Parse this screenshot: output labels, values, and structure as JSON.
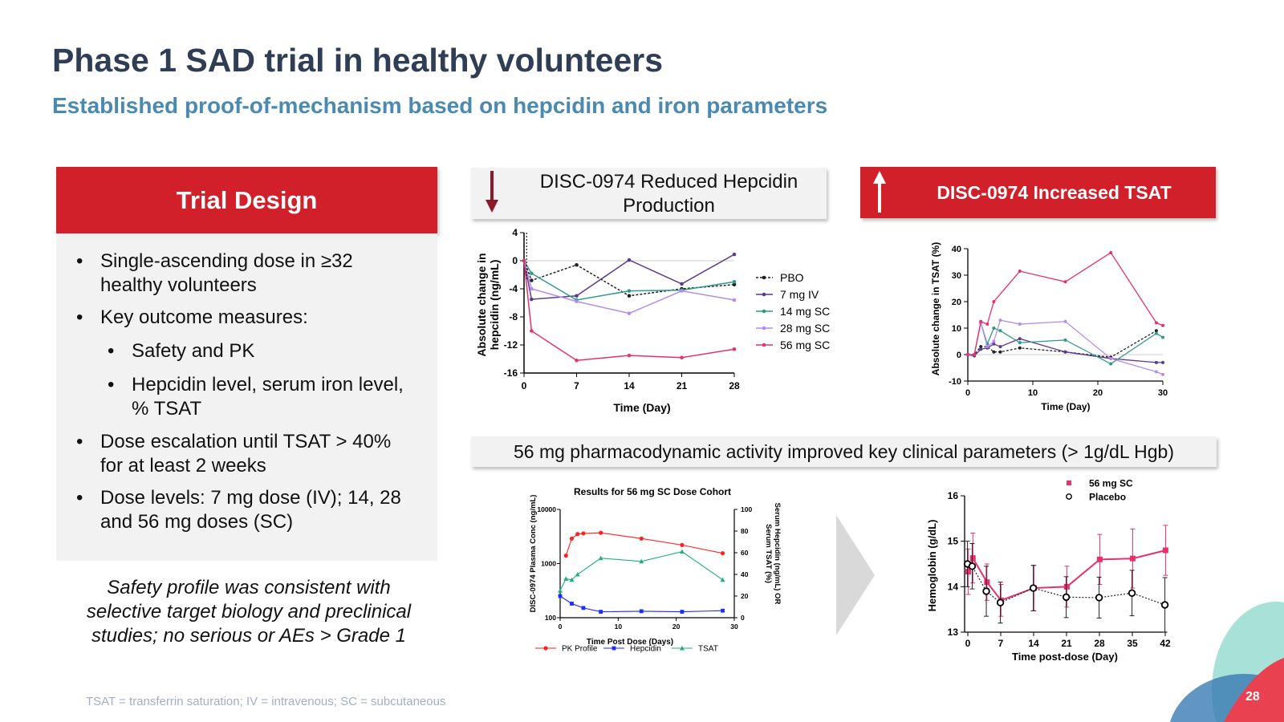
{
  "header": {
    "title": "Phase 1 SAD trial in healthy volunteers",
    "subtitle": "Established proof-of-mechanism based on hepcidin and iron parameters"
  },
  "trial_design": {
    "heading": "Trial Design",
    "bullets": [
      "Single-ascending dose in ≥32 healthy volunteers",
      "Key outcome measures:",
      "Safety and PK",
      "Hepcidin level, serum iron level, % TSAT",
      "Dose escalation until TSAT > 40% for at least 2 weeks",
      "Dose levels: 7 mg dose (IV); 14, 28 and 56 mg doses (SC)"
    ],
    "bullet_symbol": "•",
    "safety_note": "Safety profile was consistent with selective target biology and preclinical studies; no serious or AEs > Grade 1"
  },
  "banners": {
    "hepcidin": "DISC-0974 Reduced Hepcidin Production",
    "tsat": "DISC-0974 Increased TSAT",
    "pd": "56 mg pharmacodynamic activity improved key clinical parameters (> 1g/dL Hgb)"
  },
  "footnote": "TSAT = transferrin saturation; IV = intravenous; SC = subcutaneous",
  "page_number": "28",
  "colors": {
    "title": "#2f3d55",
    "subtitle": "#4a8ab0",
    "brand_red": "#d1202a",
    "panel_gray": "#f2f2f2",
    "pbo": "#222222",
    "iv7": "#5b3a8c",
    "sc14": "#2e9a8a",
    "sc28": "#b48cf0",
    "sc56": "#e8306f"
  },
  "chart_data": [
    {
      "type": "line",
      "xlabel": "Time (Day)",
      "ylabel": "Absolute change in hepcidin (ng/mL)",
      "xlim": [
        0,
        28
      ],
      "ylim": [
        -16,
        4
      ],
      "xticks": [
        0,
        7,
        14,
        21,
        28
      ],
      "yticks": [
        4,
        0,
        -4,
        -8,
        -12,
        -16
      ],
      "legend_position": "right",
      "series": [
        {
          "name": "PBO",
          "x": [
            0,
            1,
            7,
            14,
            21,
            28
          ],
          "y": [
            0,
            -2.8,
            -0.6,
            -5,
            -4,
            -3.4
          ]
        },
        {
          "name": "7 mg IV",
          "x": [
            0,
            1,
            7,
            14,
            21,
            28
          ],
          "y": [
            0,
            -5.5,
            -5,
            0.1,
            -3.3,
            0.9
          ]
        },
        {
          "name": "14 mg SC",
          "x": [
            0,
            1,
            7,
            14,
            21,
            28
          ],
          "y": [
            0,
            -1.8,
            -5.6,
            -4.3,
            -4.2,
            -3
          ]
        },
        {
          "name": "28 mg SC",
          "x": [
            0,
            1,
            7,
            14,
            21,
            28
          ],
          "y": [
            0,
            -4,
            -5.8,
            -7.5,
            -4.3,
            -5.6
          ]
        },
        {
          "name": "56 mg SC",
          "x": [
            0,
            1,
            7,
            14,
            21,
            28
          ],
          "y": [
            0,
            -10,
            -14.2,
            -13.5,
            -13.8,
            -12.6
          ]
        }
      ]
    },
    {
      "type": "line",
      "xlabel": "Time (Day)",
      "ylabel": "Absolute change in TSAT (%)",
      "xlim": [
        0,
        30
      ],
      "ylim": [
        -10,
        40
      ],
      "xticks": [
        0,
        10,
        20,
        30
      ],
      "yticks": [
        40,
        30,
        20,
        10,
        0,
        -10
      ],
      "series": [
        {
          "name": "PBO",
          "x": [
            0,
            1,
            2,
            3,
            4,
            5,
            8,
            15,
            22,
            29
          ],
          "y": [
            0,
            0,
            3,
            3,
            1,
            1,
            2.5,
            1,
            -1,
            9
          ]
        },
        {
          "name": "7 mg IV",
          "x": [
            0,
            1,
            2,
            3,
            4,
            5,
            8,
            15,
            22,
            29,
            30
          ],
          "y": [
            0,
            -0.5,
            2,
            2.5,
            4,
            3,
            6,
            1,
            -1.5,
            -3,
            -3
          ]
        },
        {
          "name": "14 mg SC",
          "x": [
            0,
            1,
            2,
            3,
            4,
            5,
            8,
            15,
            22,
            29,
            30
          ],
          "y": [
            0,
            0,
            12,
            4,
            10,
            9,
            4.5,
            5.5,
            -3.5,
            8,
            6.5
          ]
        },
        {
          "name": "28 mg SC",
          "x": [
            0,
            1,
            2,
            3,
            4,
            5,
            8,
            15,
            22,
            29,
            30
          ],
          "y": [
            0,
            0,
            12,
            3,
            5,
            13,
            11.5,
            12.5,
            -1.5,
            -6.5,
            -7.5
          ]
        },
        {
          "name": "56 mg SC",
          "x": [
            0,
            1,
            2,
            3,
            4,
            8,
            15,
            22,
            29,
            30
          ],
          "y": [
            0,
            0,
            12.5,
            11.5,
            20,
            31.5,
            27.5,
            38.5,
            12,
            11
          ]
        }
      ]
    },
    {
      "type": "line",
      "title": "Results for 56 mg SC Dose  Cohort",
      "xlabel": "Time Post Dose (Days)",
      "ylabel": "DISC-0974 Plasma Conc (ng/mL)",
      "y2label": "Serum Hepcidin (ng/mL) OR Serum  TSAT (%)",
      "xlim": [
        0,
        30
      ],
      "ylim": [
        100,
        10000
      ],
      "yscale": "log",
      "y2lim": [
        0,
        100
      ],
      "xticks": [
        0,
        10,
        20,
        30
      ],
      "yticks": [
        10000,
        1000,
        100
      ],
      "yticklabels": [
        "10000",
        "1000",
        "100"
      ],
      "y2ticks": [
        100,
        80,
        60,
        40,
        20,
        0
      ],
      "legend_position": "bottom",
      "series": [
        {
          "name": "PK Profile",
          "axis": "left",
          "x": [
            1,
            2,
            3,
            4,
            7,
            14,
            21,
            28
          ],
          "y": [
            1400,
            2900,
            3500,
            3600,
            3700,
            2900,
            2200,
            1550
          ]
        },
        {
          "name": "Hepcidin",
          "axis": "right",
          "x": [
            0,
            2,
            4,
            7,
            14,
            21,
            28
          ],
          "y": [
            20,
            13,
            9,
            5.5,
            6,
            5.5,
            6.5
          ]
        },
        {
          "name": "TSAT",
          "axis": "right",
          "x": [
            0,
            1,
            2,
            3,
            7,
            14,
            21,
            28
          ],
          "y": [
            25,
            36,
            35,
            40,
            55,
            52,
            61,
            35
          ]
        }
      ]
    },
    {
      "type": "line",
      "xlabel": "Time post-dose (Day)",
      "ylabel": "Hemoglobin (g/dL)",
      "xlim": [
        0,
        42
      ],
      "ylim": [
        13,
        16
      ],
      "xticks": [
        0,
        7,
        14,
        21,
        28,
        35,
        42
      ],
      "yticks": [
        16,
        15,
        14,
        13
      ],
      "legend_position": "top-right",
      "series": [
        {
          "name": "56 mg SC",
          "x": [
            0,
            1,
            4,
            7,
            14,
            21,
            28,
            35,
            42
          ],
          "y": [
            14.33,
            14.63,
            14.1,
            13.7,
            13.97,
            14.0,
            14.6,
            14.62,
            14.8
          ],
          "err": [
            0.5,
            0.55,
            0.4,
            0.35,
            0.5,
            0.45,
            0.55,
            0.65,
            0.55
          ]
        },
        {
          "name": "Placebo",
          "x": [
            0,
            1,
            4,
            7,
            14,
            21,
            28,
            35,
            42
          ],
          "y": [
            14.5,
            14.45,
            13.9,
            13.65,
            13.97,
            13.77,
            13.76,
            13.86,
            13.6
          ],
          "err": [
            0.5,
            0.5,
            0.55,
            0.45,
            0.5,
            0.45,
            0.45,
            0.5,
            0.6
          ]
        }
      ]
    }
  ]
}
